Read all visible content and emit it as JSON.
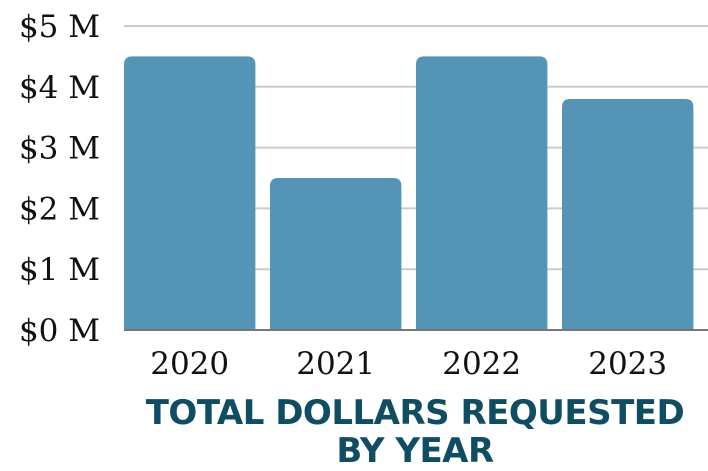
{
  "chart_data": {
    "type": "bar",
    "title_lines": [
      "TOTAL DOLLARS REQUESTED",
      "BY YEAR"
    ],
    "categories": [
      "2020",
      "2021",
      "2022",
      "2023"
    ],
    "values": [
      4.5,
      2.5,
      4.5,
      3.8
    ],
    "unit": "M",
    "ylim": [
      0,
      5
    ],
    "yticks": [
      {
        "value": 0,
        "label": "$0 M"
      },
      {
        "value": 1,
        "label": "$1 M"
      },
      {
        "value": 2,
        "label": "$2 M"
      },
      {
        "value": 3,
        "label": "$3 M"
      },
      {
        "value": 4,
        "label": "$4 M"
      },
      {
        "value": 5,
        "label": "$5 M"
      }
    ],
    "grid": true,
    "colors": {
      "bar": "#5495b7",
      "grid": "#cccccc",
      "axis": "#777777",
      "title": "#0f4d63"
    }
  }
}
